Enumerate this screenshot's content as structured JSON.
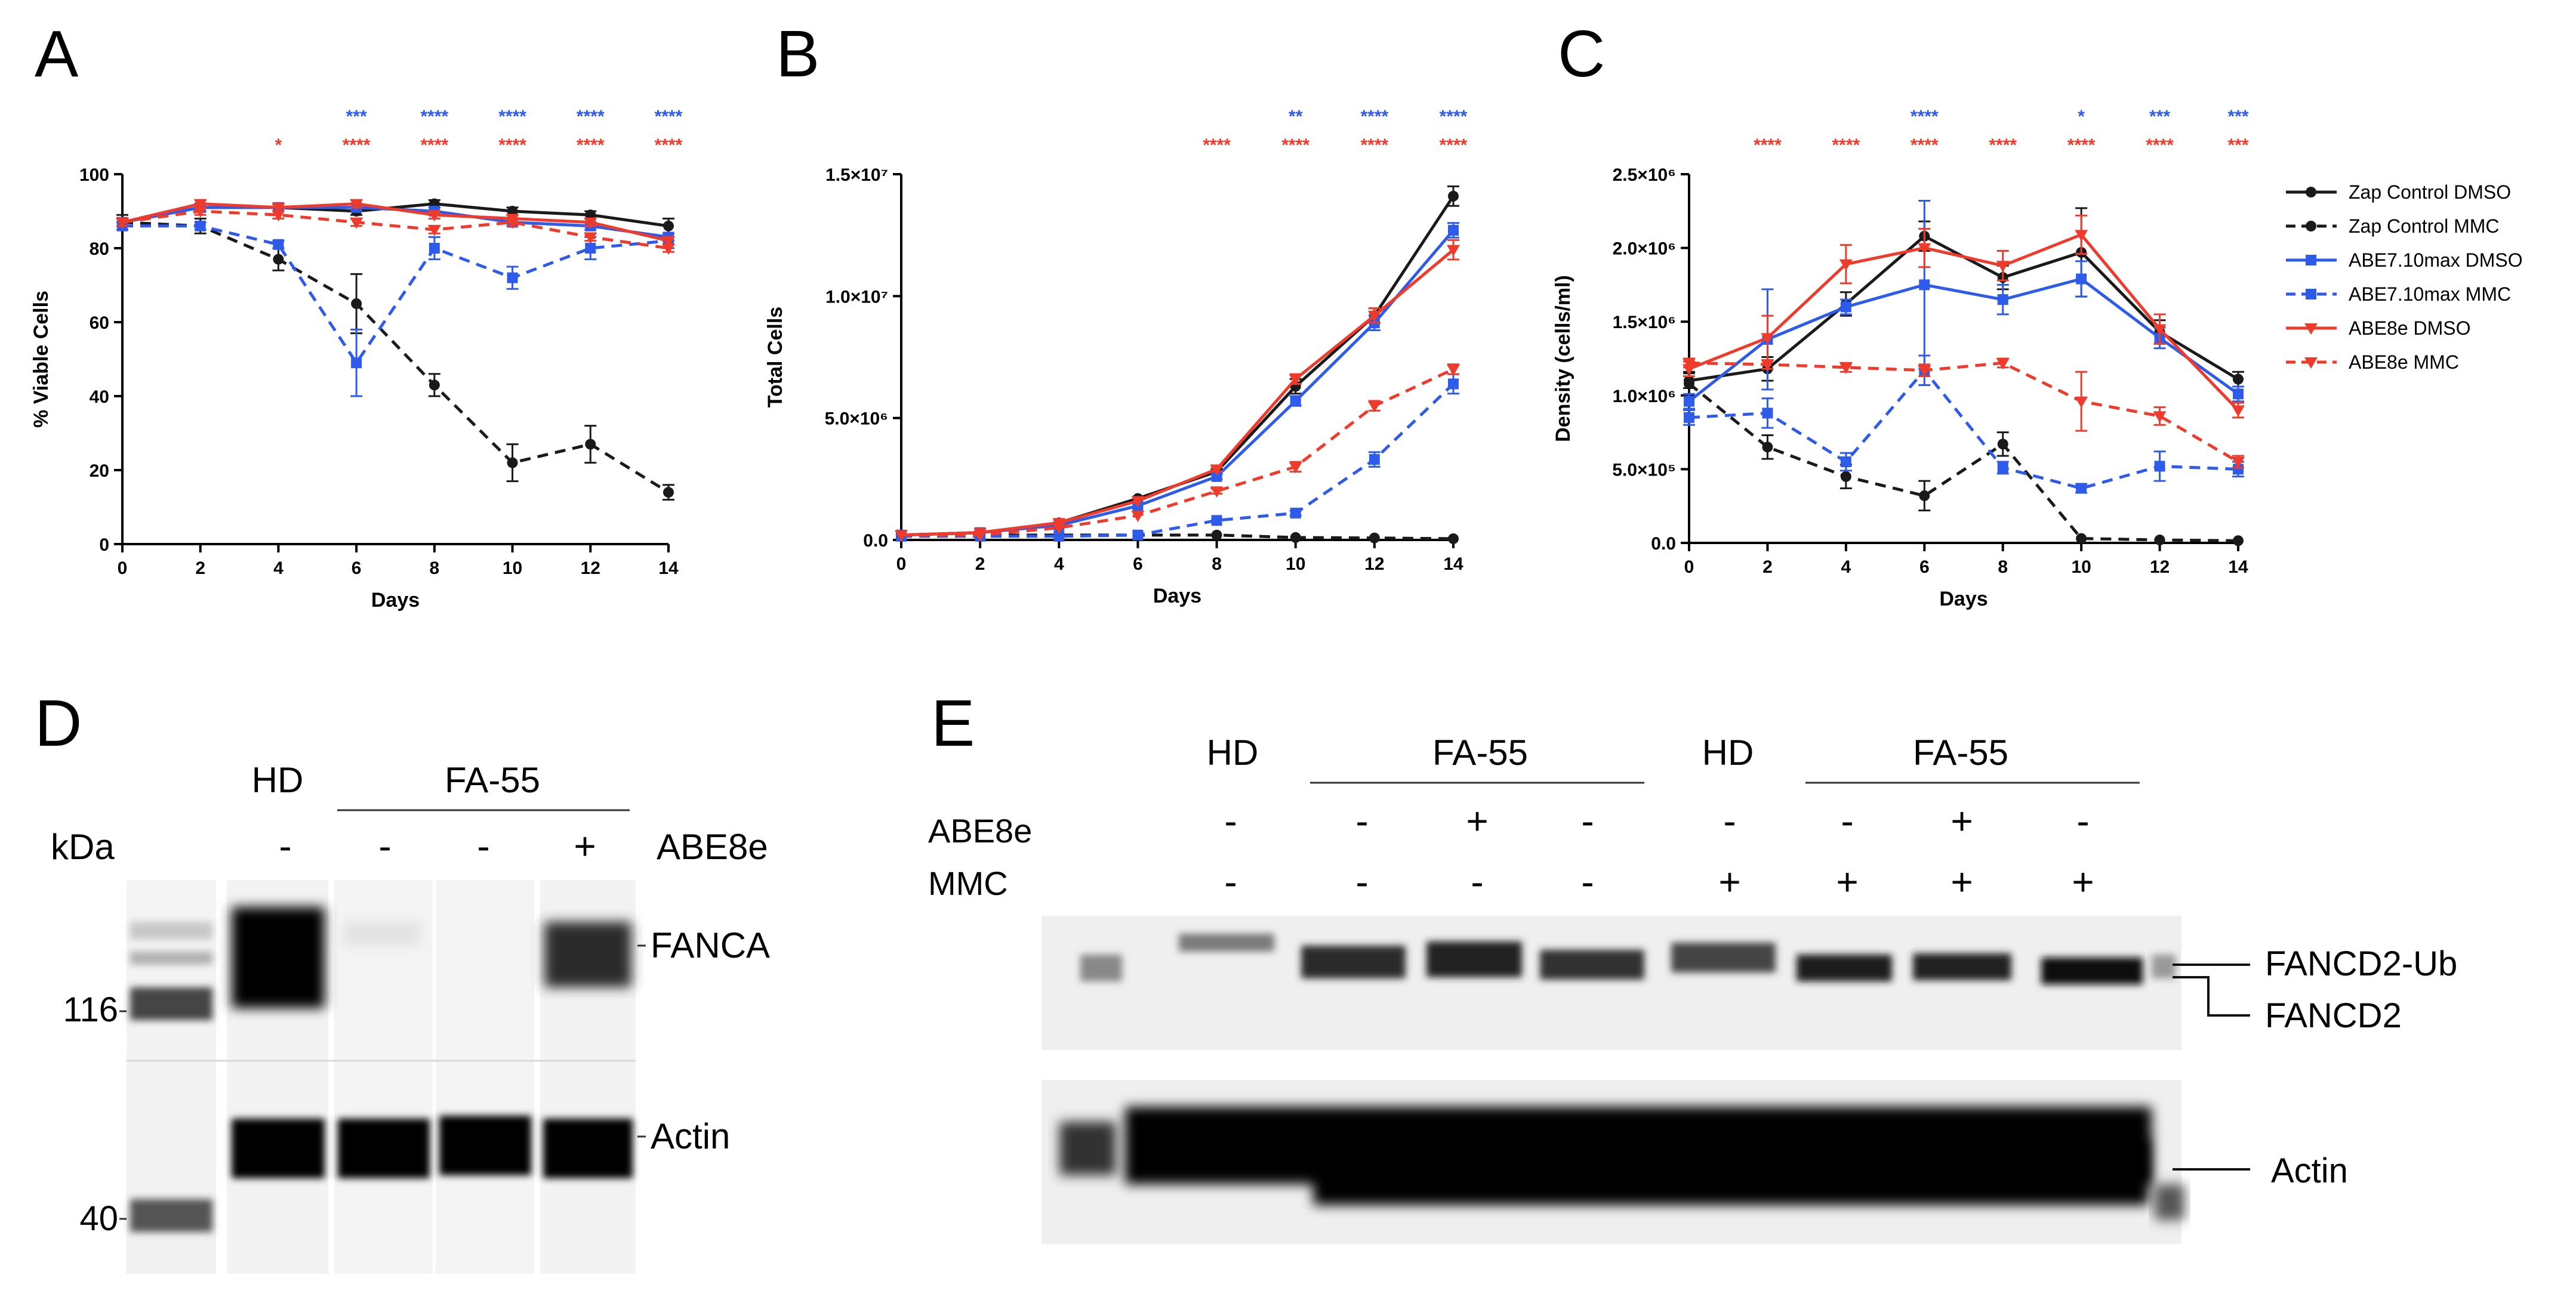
{
  "colors": {
    "black": "#1a1a1a",
    "blue": "#2e5bea",
    "red": "#ee3b2b"
  },
  "chart_data": [
    {
      "panel": "A",
      "type": "line",
      "xlabel": "Days",
      "ylabel": "% Viable Cells",
      "xlim": [
        0,
        14
      ],
      "ylim": [
        0,
        100
      ],
      "x_ticks": [
        "0",
        "2",
        "4",
        "6",
        "8",
        "10",
        "12",
        "14"
      ],
      "y_ticks": [
        "0",
        "20",
        "40",
        "60",
        "80",
        "100"
      ],
      "x": [
        0,
        2,
        4,
        6,
        8,
        10,
        12,
        14
      ],
      "series": [
        {
          "name": "Zap Control DMSO",
          "color": "#1a1a1a",
          "dashed": false,
          "marker": "circle",
          "values": [
            87,
            91,
            91,
            90,
            92,
            90,
            89,
            86
          ],
          "err": [
            1,
            1,
            1,
            1,
            1,
            1,
            1,
            2
          ]
        },
        {
          "name": "Zap Control MMC",
          "color": "#1a1a1a",
          "dashed": true,
          "marker": "circle",
          "values": [
            87,
            86,
            77,
            65,
            43,
            22,
            27,
            14
          ],
          "err": [
            2,
            2,
            3,
            8,
            3,
            5,
            5,
            2
          ]
        },
        {
          "name": "ABE7.10max DMSO",
          "color": "#2e5bea",
          "dashed": false,
          "marker": "square",
          "values": [
            87,
            91,
            91,
            91,
            90,
            87,
            86,
            83
          ],
          "err": [
            1,
            1,
            1,
            1,
            1,
            1,
            1,
            1
          ]
        },
        {
          "name": "ABE7.10max MMC",
          "color": "#2e5bea",
          "dashed": true,
          "marker": "square",
          "values": [
            86,
            86,
            81,
            49,
            80,
            72,
            80,
            82
          ],
          "err": [
            1,
            1,
            1,
            9,
            3,
            3,
            3,
            2
          ]
        },
        {
          "name": "ABE8e DMSO",
          "color": "#ee3b2b",
          "dashed": false,
          "marker": "triangle",
          "values": [
            87,
            92,
            91,
            92,
            89,
            88,
            87,
            82
          ],
          "err": [
            1,
            1,
            1,
            1,
            1,
            1,
            1,
            1
          ]
        },
        {
          "name": "ABE8e MMC",
          "color": "#ee3b2b",
          "dashed": true,
          "marker": "triangle",
          "values": [
            87,
            90,
            89,
            87,
            85,
            87,
            83,
            80
          ],
          "err": [
            1,
            1,
            1,
            1,
            1,
            1,
            1,
            1
          ]
        }
      ],
      "significance": [
        {
          "color": "#2e5bea",
          "row": 0,
          "marks": [
            {
              "x": 6,
              "label": "***"
            },
            {
              "x": 8,
              "label": "****"
            },
            {
              "x": 10,
              "label": "****"
            },
            {
              "x": 12,
              "label": "****"
            },
            {
              "x": 14,
              "label": "****"
            }
          ]
        },
        {
          "color": "#ee3b2b",
          "row": 1,
          "marks": [
            {
              "x": 4,
              "label": "*"
            },
            {
              "x": 6,
              "label": "****"
            },
            {
              "x": 8,
              "label": "****"
            },
            {
              "x": 10,
              "label": "****"
            },
            {
              "x": 12,
              "label": "****"
            },
            {
              "x": 14,
              "label": "****"
            }
          ]
        }
      ]
    },
    {
      "panel": "B",
      "type": "line",
      "xlabel": "Days",
      "ylabel": "Total Cells",
      "xlim": [
        0,
        14
      ],
      "ylim": [
        0,
        15000000
      ],
      "x_ticks": [
        "0",
        "2",
        "4",
        "6",
        "8",
        "10",
        "12",
        "14"
      ],
      "y_tick_values": [
        0,
        5000000,
        10000000,
        15000000
      ],
      "y_ticks": [
        "0.0",
        "5.0×10⁶",
        "1.0×10⁷",
        "1.5×10⁷"
      ],
      "x": [
        0,
        2,
        4,
        6,
        8,
        10,
        12,
        14
      ],
      "series": [
        {
          "name": "Zap Control DMSO",
          "color": "#1a1a1a",
          "dashed": false,
          "marker": "circle",
          "values": [
            200000,
            300000,
            700000,
            1700000,
            2800000,
            6300000,
            9200000,
            14100000
          ],
          "err": [
            0,
            0,
            0,
            0,
            100000,
            300000,
            300000,
            400000
          ]
        },
        {
          "name": "Zap Control MMC",
          "color": "#1a1a1a",
          "dashed": true,
          "marker": "circle",
          "values": [
            200000,
            200000,
            200000,
            200000,
            200000,
            100000,
            80000,
            50000
          ],
          "err": [
            0,
            0,
            0,
            0,
            0,
            0,
            0,
            0
          ]
        },
        {
          "name": "ABE7.10max DMSO",
          "color": "#2e5bea",
          "dashed": false,
          "marker": "square",
          "values": [
            200000,
            300000,
            600000,
            1400000,
            2600000,
            5700000,
            8900000,
            12700000
          ],
          "err": [
            0,
            0,
            0,
            0,
            100000,
            200000,
            300000,
            300000
          ]
        },
        {
          "name": "ABE7.10max MMC",
          "color": "#2e5bea",
          "dashed": true,
          "marker": "square",
          "values": [
            150000,
            150000,
            150000,
            200000,
            800000,
            1100000,
            3300000,
            6400000
          ],
          "err": [
            0,
            0,
            0,
            0,
            0,
            100000,
            300000,
            400000
          ]
        },
        {
          "name": "ABE8e DMSO",
          "color": "#ee3b2b",
          "dashed": false,
          "marker": "triangle",
          "values": [
            200000,
            300000,
            700000,
            1600000,
            2900000,
            6600000,
            9200000,
            11900000
          ],
          "err": [
            0,
            0,
            0,
            0,
            100000,
            200000,
            300000,
            400000
          ]
        },
        {
          "name": "ABE8e MMC",
          "color": "#ee3b2b",
          "dashed": true,
          "marker": "triangle",
          "values": [
            200000,
            200000,
            500000,
            1000000,
            2000000,
            3000000,
            5500000,
            7000000
          ],
          "err": [
            0,
            0,
            0,
            0,
            100000,
            200000,
            200000,
            200000
          ]
        }
      ],
      "significance": [
        {
          "color": "#2e5bea",
          "row": 0,
          "marks": [
            {
              "x": 10,
              "label": "**"
            },
            {
              "x": 12,
              "label": "****"
            },
            {
              "x": 14,
              "label": "****"
            }
          ]
        },
        {
          "color": "#ee3b2b",
          "row": 1,
          "marks": [
            {
              "x": 8,
              "label": "****"
            },
            {
              "x": 10,
              "label": "****"
            },
            {
              "x": 12,
              "label": "****"
            },
            {
              "x": 14,
              "label": "****"
            }
          ]
        }
      ]
    },
    {
      "panel": "C",
      "type": "line",
      "xlabel": "Days",
      "ylabel": "Density (cells/ml)",
      "xlim": [
        0,
        14
      ],
      "ylim": [
        0,
        2500000
      ],
      "x_ticks": [
        "0",
        "2",
        "4",
        "6",
        "8",
        "10",
        "12",
        "14"
      ],
      "y_tick_values": [
        0,
        500000,
        1000000,
        1500000,
        2000000,
        2500000
      ],
      "y_ticks": [
        "0.0",
        "5.0×10⁵",
        "1.0×10⁶",
        "1.5×10⁶",
        "2.0×10⁶",
        "2.5×10⁶"
      ],
      "x": [
        0,
        2,
        4,
        6,
        8,
        10,
        12,
        14
      ],
      "series": [
        {
          "name": "Zap Control DMSO",
          "color": "#1a1a1a",
          "dashed": false,
          "marker": "circle",
          "values": [
            1100000,
            1180000,
            1620000,
            2080000,
            1800000,
            1970000,
            1430000,
            1110000
          ],
          "err": [
            50000,
            80000,
            80000,
            100000,
            80000,
            300000,
            80000,
            50000
          ]
        },
        {
          "name": "Zap Control MMC",
          "color": "#1a1a1a",
          "dashed": true,
          "marker": "circle",
          "values": [
            1080000,
            650000,
            450000,
            320000,
            670000,
            30000,
            20000,
            15000
          ],
          "err": [
            80000,
            80000,
            80000,
            100000,
            80000,
            0,
            0,
            0
          ]
        },
        {
          "name": "ABE7.10max DMSO",
          "color": "#2e5bea",
          "dashed": false,
          "marker": "square",
          "values": [
            960000,
            1380000,
            1600000,
            1750000,
            1650000,
            1790000,
            1390000,
            1010000
          ],
          "err": [
            50000,
            340000,
            50000,
            570000,
            100000,
            120000,
            70000,
            50000
          ]
        },
        {
          "name": "ABE7.10max MMC",
          "color": "#2e5bea",
          "dashed": true,
          "marker": "square",
          "values": [
            850000,
            880000,
            550000,
            1170000,
            510000,
            370000,
            520000,
            500000
          ],
          "err": [
            50000,
            100000,
            60000,
            100000,
            40000,
            30000,
            100000,
            50000
          ]
        },
        {
          "name": "ABE8e DMSO",
          "color": "#ee3b2b",
          "dashed": false,
          "marker": "triangle",
          "values": [
            1180000,
            1390000,
            1890000,
            2000000,
            1880000,
            2090000,
            1450000,
            900000
          ],
          "err": [
            50000,
            150000,
            130000,
            130000,
            100000,
            130000,
            100000,
            50000
          ]
        },
        {
          "name": "ABE8e MMC",
          "color": "#ee3b2b",
          "dashed": true,
          "marker": "triangle",
          "values": [
            1220000,
            1210000,
            1190000,
            1170000,
            1220000,
            960000,
            860000,
            550000
          ],
          "err": [
            30000,
            30000,
            30000,
            40000,
            30000,
            200000,
            60000,
            40000
          ]
        }
      ],
      "significance": [
        {
          "color": "#2e5bea",
          "row": 0,
          "marks": [
            {
              "x": 6,
              "label": "****"
            },
            {
              "x": 10,
              "label": "*"
            },
            {
              "x": 12,
              "label": "***"
            },
            {
              "x": 14,
              "label": "***"
            }
          ]
        },
        {
          "color": "#ee3b2b",
          "row": 1,
          "marks": [
            {
              "x": 2,
              "label": "****"
            },
            {
              "x": 4,
              "label": "****"
            },
            {
              "x": 6,
              "label": "****"
            },
            {
              "x": 8,
              "label": "****"
            },
            {
              "x": 10,
              "label": "****"
            },
            {
              "x": 12,
              "label": "****"
            },
            {
              "x": 14,
              "label": "***"
            }
          ]
        }
      ]
    }
  ],
  "legend": [
    {
      "label": "Zap Control DMSO",
      "color": "#1a1a1a",
      "dashed": false,
      "marker": "circle"
    },
    {
      "label": "Zap Control MMC",
      "color": "#1a1a1a",
      "dashed": true,
      "marker": "circle"
    },
    {
      "label": "ABE7.10max DMSO",
      "color": "#2e5bea",
      "dashed": false,
      "marker": "square"
    },
    {
      "label": "ABE7.10max MMC",
      "color": "#2e5bea",
      "dashed": true,
      "marker": "square"
    },
    {
      "label": "ABE8e DMSO",
      "color": "#ee3b2b",
      "dashed": false,
      "marker": "triangle"
    },
    {
      "label": "ABE8e MMC",
      "color": "#ee3b2b",
      "dashed": true,
      "marker": "triangle"
    }
  ],
  "panels": {
    "a": "A",
    "b": "B",
    "c": "C",
    "d": "D",
    "e": "E"
  },
  "panel_d": {
    "kda_label": "kDa",
    "hd": "HD",
    "group": "FA-55",
    "row_label": "ABE8e",
    "lane_signs": [
      "-",
      "-",
      "-",
      "+"
    ],
    "markers": [
      "116",
      "40"
    ],
    "bands": [
      "FANCA",
      "Actin"
    ]
  },
  "panel_e": {
    "hd": "HD",
    "group": "FA-55",
    "row_labels": [
      "ABE8e",
      "MMC"
    ],
    "abe8e_signs": [
      "-",
      "-",
      "+",
      "-",
      "-",
      "-",
      "+",
      "-"
    ],
    "mmc_signs": [
      "-",
      "-",
      "-",
      "-",
      "+",
      "+",
      "+",
      "+"
    ],
    "bands": [
      "FANCD2-Ub",
      "FANCD2",
      "Actin"
    ]
  }
}
